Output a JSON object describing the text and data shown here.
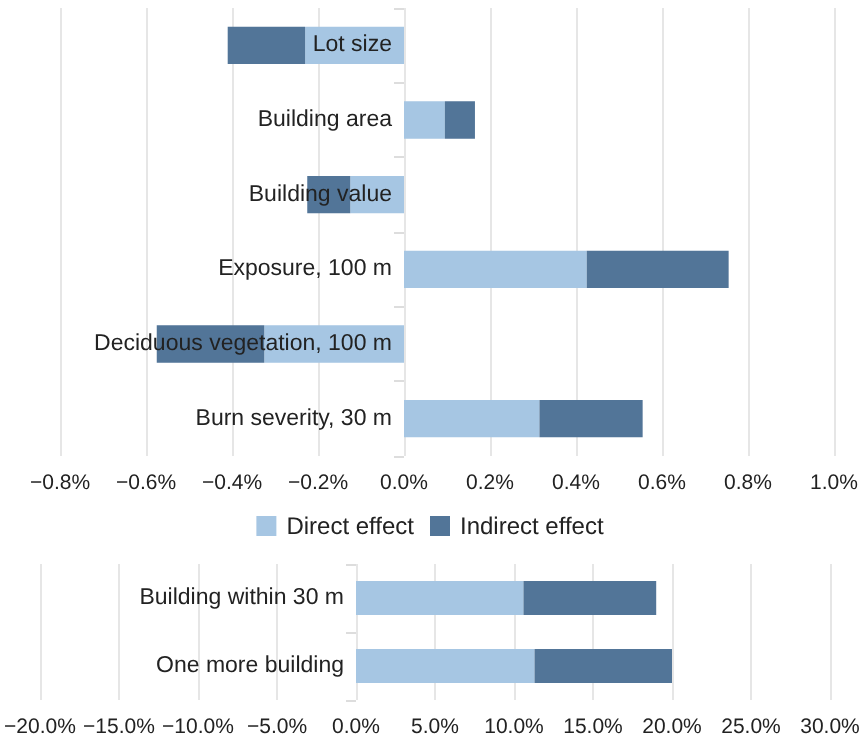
{
  "chart_data": [
    {
      "type": "bar",
      "orientation": "horizontal",
      "stacked": true,
      "categories": [
        "Lot size",
        "Building area",
        "Building value",
        "Exposure, 100 m",
        "Deciduous vegetation, 100 m",
        "Burn severity, 30 m"
      ],
      "series": [
        {
          "name": "Direct effect",
          "color": "#a6c6e3",
          "values": [
            -0.23,
            0.095,
            -0.125,
            0.425,
            -0.325,
            0.315
          ]
        },
        {
          "name": "Indirect effect",
          "color": "#527598",
          "values": [
            -0.18,
            0.07,
            -0.1,
            0.33,
            -0.25,
            0.24
          ]
        }
      ],
      "xlim": [
        -0.8,
        1.0
      ],
      "xticks": [
        {
          "value": -0.8,
          "label": "−0.8%"
        },
        {
          "value": -0.6,
          "label": "−0.6%"
        },
        {
          "value": -0.4,
          "label": "−0.4%"
        },
        {
          "value": -0.2,
          "label": "−0.2%"
        },
        {
          "value": 0,
          "label": "0.0%"
        },
        {
          "value": 0.2,
          "label": "0.2%"
        },
        {
          "value": 0.4,
          "label": "0.4%"
        },
        {
          "value": 0.6,
          "label": "0.6%"
        },
        {
          "value": 0.8,
          "label": "0.8%"
        },
        {
          "value": 1.0,
          "label": "1.0%"
        }
      ],
      "grid": "x",
      "legend": "bottom"
    },
    {
      "type": "bar",
      "orientation": "horizontal",
      "stacked": true,
      "categories": [
        "Building within 30 m",
        "One more building"
      ],
      "series": [
        {
          "color": "#a6c6e3",
          "values": [
            10.6,
            11.3
          ]
        },
        {
          "color": "#527598",
          "values": [
            8.4,
            8.7
          ]
        }
      ],
      "xlim": [
        -20,
        30
      ],
      "xticks": [
        {
          "value": -20,
          "label": "−20.0%"
        },
        {
          "value": -15,
          "label": "−15.0%"
        },
        {
          "value": -10,
          "label": "−10.0%"
        },
        {
          "value": -5,
          "label": "−5.0%"
        },
        {
          "value": 0,
          "label": "0.0%"
        },
        {
          "value": 5,
          "label": "5.0%"
        },
        {
          "value": 10,
          "label": "10.0%"
        },
        {
          "value": 15,
          "label": "15.0%"
        },
        {
          "value": 20,
          "label": "20.0%"
        },
        {
          "value": 25,
          "label": "25.0%"
        },
        {
          "value": 30,
          "label": "30.0%"
        }
      ],
      "grid": "x"
    }
  ]
}
